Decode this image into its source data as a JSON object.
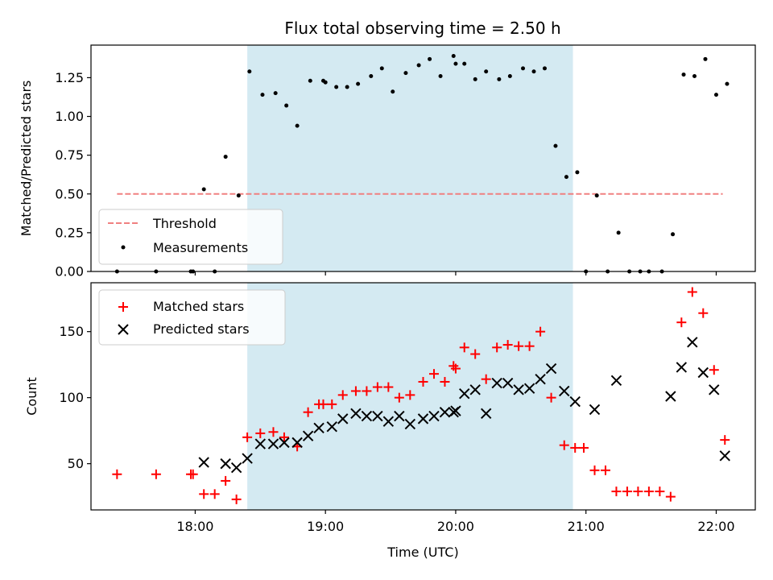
{
  "chart_data": [
    {
      "type": "scatter",
      "title": "Flux total observing time = 2.50 h",
      "xlabel": "",
      "ylabel": "Matched/Predicted stars",
      "xlim": [
        "17:12",
        "22:18"
      ],
      "ylim": [
        0.0,
        1.46
      ],
      "x_ticks": [
        "18:00",
        "19:00",
        "20:00",
        "21:00",
        "22:00"
      ],
      "y_ticks": [
        "0.00",
        "0.25",
        "0.50",
        "0.75",
        "1.00",
        "1.25"
      ],
      "shaded_interval": [
        "18:24",
        "20:54"
      ],
      "threshold": {
        "name": "Threshold",
        "value": 0.5,
        "x_range": [
          "17:24",
          "22:03"
        ],
        "color": "#f08080"
      },
      "legend": {
        "position": "lower-left",
        "entries": [
          "Threshold",
          "Measurements"
        ]
      },
      "series": [
        {
          "name": "Measurements",
          "color": "#000000",
          "marker": "dot",
          "points": [
            [
              "17:24",
              0.0
            ],
            [
              "17:42",
              0.0
            ],
            [
              "17:58",
              0.0
            ],
            [
              "17:59",
              0.0
            ],
            [
              "18:04",
              0.53
            ],
            [
              "18:09",
              0.0
            ],
            [
              "18:14",
              0.74
            ],
            [
              "18:20",
              0.49
            ],
            [
              "18:25",
              1.29
            ],
            [
              "18:31",
              1.14
            ],
            [
              "18:37",
              1.15
            ],
            [
              "18:42",
              1.07
            ],
            [
              "18:47",
              0.94
            ],
            [
              "18:53",
              1.23
            ],
            [
              "18:59",
              1.23
            ],
            [
              "19:00",
              1.22
            ],
            [
              "19:05",
              1.19
            ],
            [
              "19:10",
              1.19
            ],
            [
              "19:15",
              1.21
            ],
            [
              "19:21",
              1.26
            ],
            [
              "19:26",
              1.31
            ],
            [
              "19:31",
              1.16
            ],
            [
              "19:37",
              1.28
            ],
            [
              "19:43",
              1.33
            ],
            [
              "19:48",
              1.37
            ],
            [
              "19:53",
              1.26
            ],
            [
              "19:59",
              1.39
            ],
            [
              "20:00",
              1.34
            ],
            [
              "20:04",
              1.34
            ],
            [
              "20:09",
              1.24
            ],
            [
              "20:14",
              1.29
            ],
            [
              "20:20",
              1.24
            ],
            [
              "20:25",
              1.26
            ],
            [
              "20:31",
              1.31
            ],
            [
              "20:36",
              1.29
            ],
            [
              "20:41",
              1.31
            ],
            [
              "20:46",
              0.81
            ],
            [
              "20:51",
              0.61
            ],
            [
              "20:56",
              0.64
            ],
            [
              "21:00",
              0.0
            ],
            [
              "21:05",
              0.49
            ],
            [
              "21:10",
              0.0
            ],
            [
              "21:15",
              0.25
            ],
            [
              "21:20",
              0.0
            ],
            [
              "21:25",
              0.0
            ],
            [
              "21:29",
              0.0
            ],
            [
              "21:35",
              0.0
            ],
            [
              "21:40",
              0.24
            ],
            [
              "21:45",
              1.27
            ],
            [
              "21:50",
              1.26
            ],
            [
              "21:55",
              1.37
            ],
            [
              "22:00",
              1.14
            ],
            [
              "22:05",
              1.21
            ]
          ]
        }
      ]
    },
    {
      "type": "scatter",
      "title": "",
      "xlabel": "Time (UTC)",
      "ylabel": "Count",
      "xlim": [
        "17:12",
        "22:18"
      ],
      "ylim": [
        15,
        187
      ],
      "x_ticks": [
        "18:00",
        "19:00",
        "20:00",
        "21:00",
        "22:00"
      ],
      "y_ticks": [
        "50",
        "100",
        "150"
      ],
      "shaded_interval": [
        "18:24",
        "20:54"
      ],
      "legend": {
        "position": "upper-left",
        "entries": [
          "Matched stars",
          "Predicted stars"
        ]
      },
      "series": [
        {
          "name": "Matched stars",
          "color": "#ff0000",
          "marker": "plus",
          "points": [
            [
              "17:24",
              42
            ],
            [
              "17:42",
              42
            ],
            [
              "17:58",
              42
            ],
            [
              "17:59",
              42
            ],
            [
              "18:04",
              27
            ],
            [
              "18:09",
              27
            ],
            [
              "18:14",
              37
            ],
            [
              "18:19",
              23
            ],
            [
              "18:24",
              70
            ],
            [
              "18:30",
              73
            ],
            [
              "18:36",
              74
            ],
            [
              "18:41",
              70
            ],
            [
              "18:47",
              63
            ],
            [
              "18:52",
              89
            ],
            [
              "18:57",
              95
            ],
            [
              "18:59",
              95
            ],
            [
              "19:03",
              95
            ],
            [
              "19:08",
              102
            ],
            [
              "19:14",
              105
            ],
            [
              "19:19",
              105
            ],
            [
              "19:24",
              108
            ],
            [
              "19:29",
              108
            ],
            [
              "19:34",
              100
            ],
            [
              "19:39",
              102
            ],
            [
              "19:45",
              112
            ],
            [
              "19:50",
              118
            ],
            [
              "19:55",
              112
            ],
            [
              "19:59",
              124
            ],
            [
              "20:00",
              122
            ],
            [
              "20:04",
              138
            ],
            [
              "20:09",
              133
            ],
            [
              "20:14",
              114
            ],
            [
              "20:19",
              138
            ],
            [
              "20:24",
              140
            ],
            [
              "20:29",
              139
            ],
            [
              "20:34",
              139
            ],
            [
              "20:39",
              150
            ],
            [
              "20:44",
              100
            ],
            [
              "20:50",
              64
            ],
            [
              "20:55",
              62
            ],
            [
              "20:59",
              62
            ],
            [
              "21:04",
              45
            ],
            [
              "21:09",
              45
            ],
            [
              "21:14",
              29
            ],
            [
              "21:19",
              29
            ],
            [
              "21:24",
              29
            ],
            [
              "21:29",
              29
            ],
            [
              "21:34",
              29
            ],
            [
              "21:39",
              25
            ],
            [
              "21:44",
              157
            ],
            [
              "21:49",
              180
            ],
            [
              "21:54",
              164
            ],
            [
              "21:59",
              121
            ],
            [
              "22:04",
              68
            ]
          ]
        },
        {
          "name": "Predicted stars",
          "color": "#000000",
          "marker": "x",
          "points": [
            [
              "18:04",
              51
            ],
            [
              "18:14",
              50
            ],
            [
              "18:19",
              47
            ],
            [
              "18:24",
              54
            ],
            [
              "18:30",
              65
            ],
            [
              "18:36",
              65
            ],
            [
              "18:41",
              66
            ],
            [
              "18:47",
              66
            ],
            [
              "18:52",
              71
            ],
            [
              "18:57",
              77
            ],
            [
              "19:03",
              78
            ],
            [
              "19:08",
              84
            ],
            [
              "19:14",
              88
            ],
            [
              "19:19",
              86
            ],
            [
              "19:24",
              86
            ],
            [
              "19:29",
              82
            ],
            [
              "19:34",
              86
            ],
            [
              "19:39",
              80
            ],
            [
              "19:45",
              84
            ],
            [
              "19:50",
              86
            ],
            [
              "19:55",
              89
            ],
            [
              "19:59",
              89
            ],
            [
              "20:00",
              90
            ],
            [
              "20:04",
              103
            ],
            [
              "20:09",
              106
            ],
            [
              "20:14",
              88
            ],
            [
              "20:19",
              111
            ],
            [
              "20:24",
              111
            ],
            [
              "20:29",
              106
            ],
            [
              "20:34",
              107
            ],
            [
              "20:39",
              114
            ],
            [
              "20:44",
              122
            ],
            [
              "20:50",
              105
            ],
            [
              "20:55",
              97
            ],
            [
              "21:04",
              91
            ],
            [
              "21:14",
              113
            ],
            [
              "21:39",
              101
            ],
            [
              "21:44",
              123
            ],
            [
              "21:49",
              142
            ],
            [
              "21:54",
              119
            ],
            [
              "21:59",
              106
            ],
            [
              "22:04",
              56
            ]
          ]
        }
      ]
    }
  ]
}
